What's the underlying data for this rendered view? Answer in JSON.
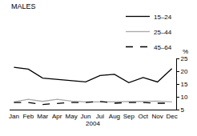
{
  "chart_data": {
    "type": "line",
    "title": "MALES",
    "xlabel": "2004",
    "ylabel": "%",
    "categories": [
      "Jan",
      "Feb",
      "Mar",
      "Apr",
      "May",
      "Jun",
      "Jul",
      "Aug",
      "Sep",
      "Oct",
      "Nov",
      "Dec"
    ],
    "series": [
      {
        "name": "15–24",
        "color": "#000000",
        "line_style": "solid",
        "values": [
          21.5,
          20.8,
          17.3,
          16.8,
          16.5,
          15.8,
          18.3,
          18.8,
          15.5,
          17.5,
          15.8,
          21.0
        ]
      },
      {
        "name": "25–44",
        "color": "#aaaaaa",
        "line_style": "solid",
        "values": [
          8.0,
          9.0,
          8.2,
          9.0,
          8.3,
          8.0,
          8.0,
          8.0,
          8.2,
          8.2,
          8.3,
          8.0
        ]
      },
      {
        "name": "45–64",
        "color": "#000000",
        "line_style": "dash",
        "values": [
          7.8,
          7.8,
          7.0,
          7.3,
          7.8,
          7.8,
          8.2,
          7.5,
          7.8,
          7.8,
          7.5,
          7.5
        ]
      }
    ],
    "ylim": [
      5,
      25
    ],
    "yticks": [
      5,
      10,
      15,
      20,
      25
    ],
    "grid": false,
    "legend": "top right"
  }
}
